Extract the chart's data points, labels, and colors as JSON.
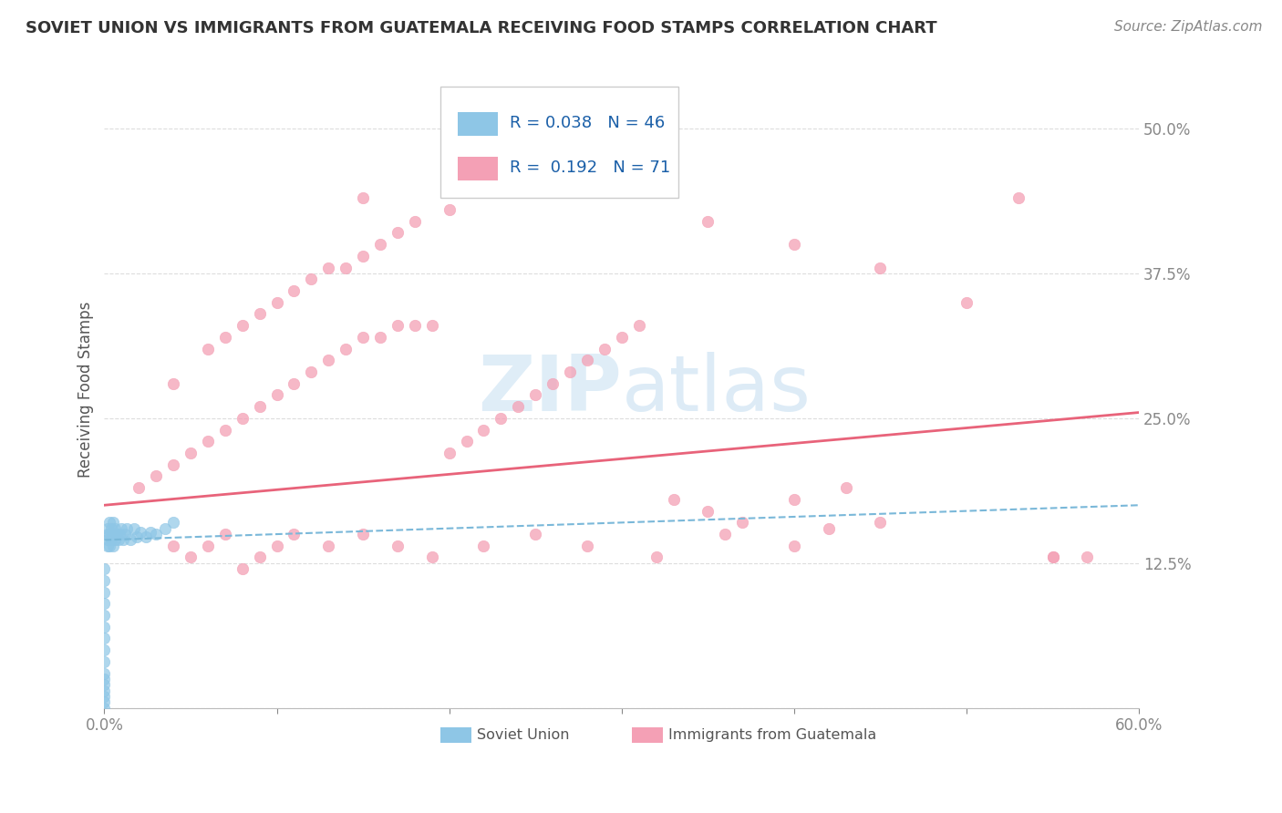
{
  "title": "SOVIET UNION VS IMMIGRANTS FROM GUATEMALA RECEIVING FOOD STAMPS CORRELATION CHART",
  "source": "Source: ZipAtlas.com",
  "ylabel": "Receiving Food Stamps",
  "x_min": 0.0,
  "x_max": 0.6,
  "y_min": 0.0,
  "y_max": 0.55,
  "color_soviet": "#8ec6e6",
  "color_guatemala": "#f4a0b5",
  "line_color_soviet": "#7ab8d9",
  "line_color_guatemala": "#e8637a",
  "watermark_color": "#c8dff0",
  "bg_color": "#ffffff",
  "grid_color": "#dddddd",
  "title_color": "#333333",
  "source_color": "#888888",
  "tick_color": "#666666",
  "legend_border_color": "#cccccc",
  "legend_text_color": "#1a5fa8",
  "soviet_line_start_y": 0.145,
  "soviet_line_end_y": 0.175,
  "guate_line_start_y": 0.175,
  "guate_line_end_y": 0.255,
  "soviet_x": [
    0.0,
    0.0,
    0.0,
    0.0,
    0.0,
    0.0,
    0.0,
    0.0,
    0.0,
    0.0,
    0.0,
    0.0,
    0.0,
    0.0,
    0.0,
    0.0,
    0.002,
    0.002,
    0.002,
    0.002,
    0.003,
    0.003,
    0.003,
    0.004,
    0.004,
    0.005,
    0.005,
    0.005,
    0.006,
    0.006,
    0.007,
    0.008,
    0.009,
    0.01,
    0.011,
    0.012,
    0.013,
    0.015,
    0.017,
    0.019,
    0.021,
    0.024,
    0.027,
    0.03,
    0.035,
    0.04
  ],
  "soviet_y": [
    0.0,
    0.005,
    0.01,
    0.015,
    0.02,
    0.025,
    0.03,
    0.04,
    0.05,
    0.06,
    0.07,
    0.08,
    0.09,
    0.1,
    0.11,
    0.12,
    0.14,
    0.145,
    0.15,
    0.155,
    0.14,
    0.15,
    0.16,
    0.145,
    0.155,
    0.14,
    0.15,
    0.16,
    0.145,
    0.155,
    0.15,
    0.145,
    0.15,
    0.155,
    0.145,
    0.15,
    0.155,
    0.145,
    0.155,
    0.148,
    0.152,
    0.148,
    0.152,
    0.15,
    0.155,
    0.16
  ],
  "guate_x": [
    0.02,
    0.03,
    0.04,
    0.04,
    0.05,
    0.06,
    0.06,
    0.07,
    0.07,
    0.08,
    0.08,
    0.09,
    0.09,
    0.1,
    0.1,
    0.11,
    0.11,
    0.12,
    0.12,
    0.13,
    0.13,
    0.14,
    0.14,
    0.15,
    0.15,
    0.16,
    0.16,
    0.17,
    0.17,
    0.18,
    0.18,
    0.19,
    0.2,
    0.2,
    0.21,
    0.22,
    0.23,
    0.24,
    0.25,
    0.26,
    0.27,
    0.28,
    0.29,
    0.3,
    0.31,
    0.33,
    0.35,
    0.37,
    0.4,
    0.43,
    0.04,
    0.05,
    0.06,
    0.07,
    0.08,
    0.09,
    0.1,
    0.11,
    0.13,
    0.15,
    0.17,
    0.19,
    0.22,
    0.25,
    0.28,
    0.32,
    0.36,
    0.4,
    0.45,
    0.55,
    0.57
  ],
  "guate_y": [
    0.19,
    0.2,
    0.21,
    0.28,
    0.22,
    0.23,
    0.31,
    0.24,
    0.32,
    0.25,
    0.33,
    0.26,
    0.34,
    0.27,
    0.35,
    0.28,
    0.36,
    0.29,
    0.37,
    0.3,
    0.38,
    0.31,
    0.38,
    0.32,
    0.39,
    0.32,
    0.4,
    0.33,
    0.41,
    0.33,
    0.42,
    0.33,
    0.43,
    0.22,
    0.23,
    0.24,
    0.25,
    0.26,
    0.27,
    0.28,
    0.29,
    0.3,
    0.31,
    0.32,
    0.33,
    0.18,
    0.17,
    0.16,
    0.18,
    0.19,
    0.14,
    0.13,
    0.14,
    0.15,
    0.12,
    0.13,
    0.14,
    0.15,
    0.14,
    0.15,
    0.14,
    0.13,
    0.14,
    0.15,
    0.14,
    0.13,
    0.15,
    0.14,
    0.16,
    0.13,
    0.13
  ]
}
